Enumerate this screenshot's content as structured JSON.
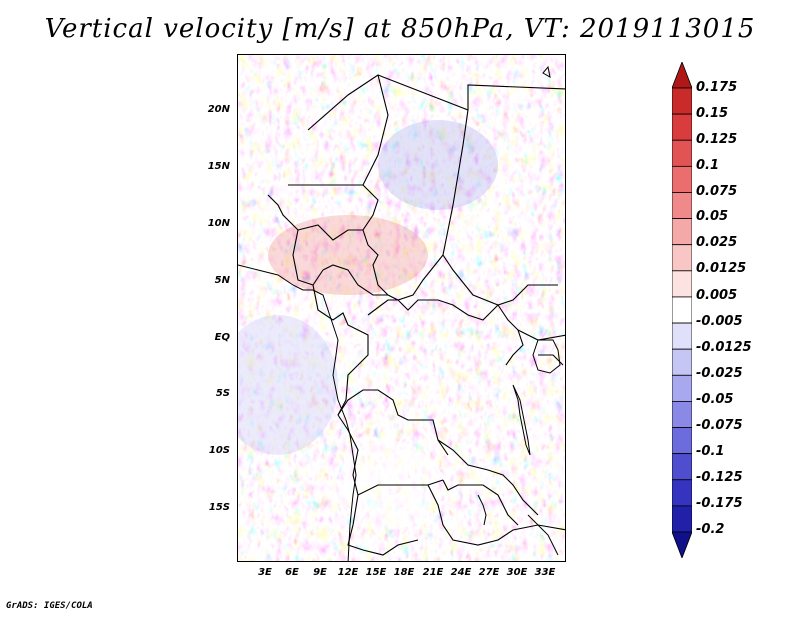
{
  "title": "Vertical velocity [m/s] at 850hPa, VT: 2019113015",
  "latitude_labels": [
    "20N",
    "15N",
    "10N",
    "5N",
    "EQ",
    "5S",
    "10S",
    "15S"
  ],
  "longitude_labels": [
    "3E",
    "6E",
    "9E",
    "12E",
    "15E",
    "18E",
    "21E",
    "24E",
    "27E",
    "30E",
    "33E"
  ],
  "colorbar": {
    "labels": [
      "0.175",
      "0.15",
      "0.125",
      "0.1",
      "0.075",
      "0.05",
      "0.025",
      "0.0125",
      "0.005",
      "-0.005",
      "-0.0125",
      "-0.025",
      "-0.05",
      "-0.075",
      "-0.1",
      "-0.125",
      "-0.175",
      "-0.2"
    ],
    "colors": [
      "#b01818",
      "#c92a2a",
      "#d83c3c",
      "#e25454",
      "#ea6e6e",
      "#f08a8a",
      "#f5a8a8",
      "#f9c6c6",
      "#fde2e2",
      "#ffffff",
      "#e0e0fb",
      "#c6c6f5",
      "#a8a8ee",
      "#8a8ae6",
      "#6c6cdc",
      "#4e4ecf",
      "#3434c0",
      "#2020a8",
      "#10108a"
    ]
  },
  "credit": "GrADS: IGES/COLA"
}
